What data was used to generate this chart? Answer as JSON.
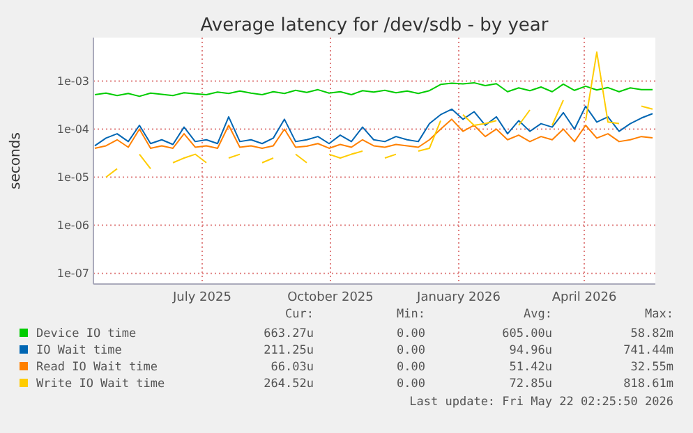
{
  "chart_data": {
    "type": "line",
    "title": "Average latency for /dev/sdb - by year",
    "ylabel": "seconds",
    "log": "y",
    "grid": true,
    "legend": "bottom",
    "marker": "none",
    "line_style": "solid",
    "x": [
      "2025-04-15",
      "2025-04-23",
      "2025-05-01",
      "2025-05-09",
      "2025-05-17",
      "2025-05-25",
      "2025-06-02",
      "2025-06-10",
      "2025-06-18",
      "2025-06-26",
      "2025-07-04",
      "2025-07-12",
      "2025-07-20",
      "2025-07-28",
      "2025-08-05",
      "2025-08-13",
      "2025-08-21",
      "2025-08-29",
      "2025-09-06",
      "2025-09-14",
      "2025-09-22",
      "2025-09-30",
      "2025-10-08",
      "2025-10-16",
      "2025-10-24",
      "2025-11-01",
      "2025-11-09",
      "2025-11-17",
      "2025-11-25",
      "2025-12-03",
      "2025-12-11",
      "2025-12-19",
      "2025-12-27",
      "2026-01-04",
      "2026-01-12",
      "2026-01-20",
      "2026-01-28",
      "2026-02-05",
      "2026-02-13",
      "2026-02-21",
      "2026-03-01",
      "2026-03-09",
      "2026-03-17",
      "2026-03-25",
      "2026-04-02",
      "2026-04-10",
      "2026-04-18",
      "2026-04-26",
      "2026-05-04",
      "2026-05-12",
      "2026-05-20"
    ],
    "xlim": [
      "2025-04-14",
      "2026-05-22"
    ],
    "xticks": [
      {
        "value": "2025-07-01",
        "label": "July 2025"
      },
      {
        "value": "2025-10-01",
        "label": "October 2025"
      },
      {
        "value": "2026-01-01",
        "label": "January 2026"
      },
      {
        "value": "2026-04-01",
        "label": "April 2026"
      }
    ],
    "ylim": [
      6e-08,
      0.008
    ],
    "yticks": [
      {
        "value": 1e-07,
        "label": "1e-07"
      },
      {
        "value": 1e-06,
        "label": "1e-06"
      },
      {
        "value": 1e-05,
        "label": "1e-05"
      },
      {
        "value": 0.0001,
        "label": "1e-04"
      },
      {
        "value": 0.001,
        "label": "1e-03"
      }
    ],
    "series": [
      {
        "name": "Device IO time",
        "color": "#00cc00",
        "values": [
          0.00052,
          0.00056,
          0.0005,
          0.00055,
          0.00048,
          0.00056,
          0.00053,
          0.0005,
          0.00057,
          0.00054,
          0.00052,
          0.00059,
          0.00055,
          0.00062,
          0.00056,
          0.00052,
          0.0006,
          0.00055,
          0.00064,
          0.00058,
          0.00066,
          0.00056,
          0.0006,
          0.00052,
          0.00063,
          0.00059,
          0.00064,
          0.00057,
          0.00062,
          0.00055,
          0.00063,
          0.00085,
          0.0009,
          0.00087,
          0.00092,
          0.0008,
          0.00088,
          0.0006,
          0.00072,
          0.00063,
          0.00075,
          0.0006,
          0.00086,
          0.00064,
          0.00078,
          0.00065,
          0.00073,
          0.0006,
          0.00072,
          0.00066,
          0.00066
        ]
      },
      {
        "name": "IO Wait time",
        "color": "#0066b3",
        "values": [
          4.5e-05,
          6.5e-05,
          8e-05,
          5.5e-05,
          0.00012,
          5e-05,
          6e-05,
          4.8e-05,
          0.00011,
          5.5e-05,
          6e-05,
          5e-05,
          0.00018,
          5.5e-05,
          6e-05,
          5e-05,
          6.5e-05,
          0.00016,
          5.5e-05,
          6e-05,
          7e-05,
          5e-05,
          7.5e-05,
          5.5e-05,
          0.00011,
          6e-05,
          5.5e-05,
          7e-05,
          6e-05,
          5.5e-05,
          0.00013,
          0.0002,
          0.00026,
          0.00016,
          0.00023,
          0.00012,
          0.00018,
          8e-05,
          0.00015,
          9e-05,
          0.00013,
          0.00011,
          0.00022,
          0.0001,
          0.0003,
          0.00014,
          0.00018,
          9e-05,
          0.00013,
          0.00017,
          0.00021
        ]
      },
      {
        "name": "Read IO Wait time",
        "color": "#ff8000",
        "values": [
          4e-05,
          4.5e-05,
          6e-05,
          4.2e-05,
          0.0001,
          4e-05,
          4.5e-05,
          4e-05,
          8e-05,
          4.2e-05,
          4.5e-05,
          4e-05,
          0.00012,
          4.2e-05,
          4.5e-05,
          4e-05,
          4.5e-05,
          0.0001,
          4.2e-05,
          4.4e-05,
          5e-05,
          4e-05,
          4.8e-05,
          4.2e-05,
          6e-05,
          4.5e-05,
          4.2e-05,
          4.8e-05,
          4.5e-05,
          4.2e-05,
          6e-05,
          0.0001,
          0.00016,
          9e-05,
          0.00012,
          7e-05,
          0.0001,
          6e-05,
          7.5e-05,
          5.5e-05,
          7e-05,
          6e-05,
          0.0001,
          5.5e-05,
          0.00012,
          6.5e-05,
          8e-05,
          5.5e-05,
          6e-05,
          7e-05,
          6.6e-05
        ]
      },
      {
        "name": "Write IO Wait time",
        "color": "#ffcc00",
        "values": [
          null,
          1e-05,
          1.5e-05,
          null,
          3e-05,
          1.5e-05,
          null,
          2e-05,
          2.5e-05,
          3e-05,
          2e-05,
          null,
          2.5e-05,
          3e-05,
          null,
          2e-05,
          2.5e-05,
          null,
          3e-05,
          2e-05,
          null,
          3e-05,
          2.5e-05,
          3e-05,
          3.5e-05,
          null,
          2.5e-05,
          3e-05,
          null,
          3.5e-05,
          4e-05,
          0.00015,
          null,
          0.0002,
          0.00012,
          0.00013,
          0.00015,
          null,
          0.00012,
          0.00025,
          null,
          0.00012,
          0.0004,
          null,
          0.00015,
          0.004,
          0.00014,
          0.00013,
          null,
          0.0003,
          0.00026
        ]
      }
    ],
    "annotations": [
      "Cur:",
      "Min:",
      "Avg:",
      "Max:",
      "663.27u",
      "0.00",
      "605.00u",
      "58.82m",
      "211.25u",
      "0.00",
      "94.96u",
      "741.44m",
      "66.03u",
      "0.00",
      "51.42u",
      "32.55m",
      "264.52u",
      "0.00",
      "72.85u",
      "818.61m",
      "Last update: Fri May 22 02:25:50 2026"
    ]
  }
}
